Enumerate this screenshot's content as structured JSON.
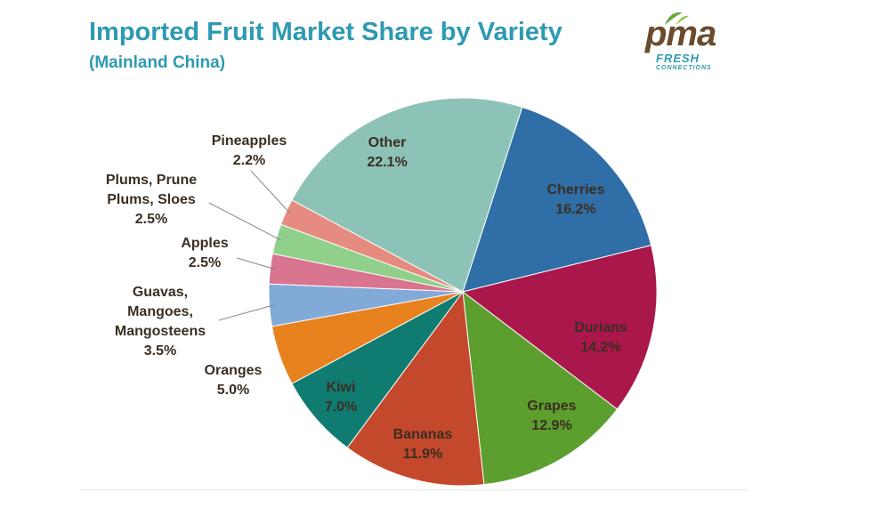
{
  "chart_data": {
    "type": "pie",
    "title": "Imported Fruit Market Share by Variety",
    "subtitle": "(Mainland China)",
    "categories": [
      "Cherries",
      "Durians",
      "Grapes",
      "Bananas",
      "Kiwi",
      "Oranges",
      "Guavas,\nMangoes,\nMangosteens",
      "Apples",
      "Plums, Prune\nPlums, Sloes",
      "Pineapples",
      "Other"
    ],
    "values": [
      16.2,
      14.2,
      12.9,
      11.9,
      7.0,
      5.0,
      3.5,
      2.5,
      2.5,
      2.2,
      22.1
    ],
    "value_labels": [
      "16.2%",
      "14.2%",
      "12.9%",
      "11.9%",
      "7.0%",
      "5.0%",
      "3.5%",
      "2.5%",
      "2.5%",
      "2.2%",
      "22.1%"
    ],
    "colors": [
      "#2f6ea6",
      "#a9174b",
      "#5c9f2e",
      "#c4482b",
      "#107b70",
      "#e8821f",
      "#82aad9",
      "#d9758f",
      "#90d08b",
      "#e68b80",
      "#8dc3b6"
    ]
  },
  "logo": {
    "brand": "pma",
    "line1": "FRESH",
    "line2": "CONNECTIONS"
  }
}
